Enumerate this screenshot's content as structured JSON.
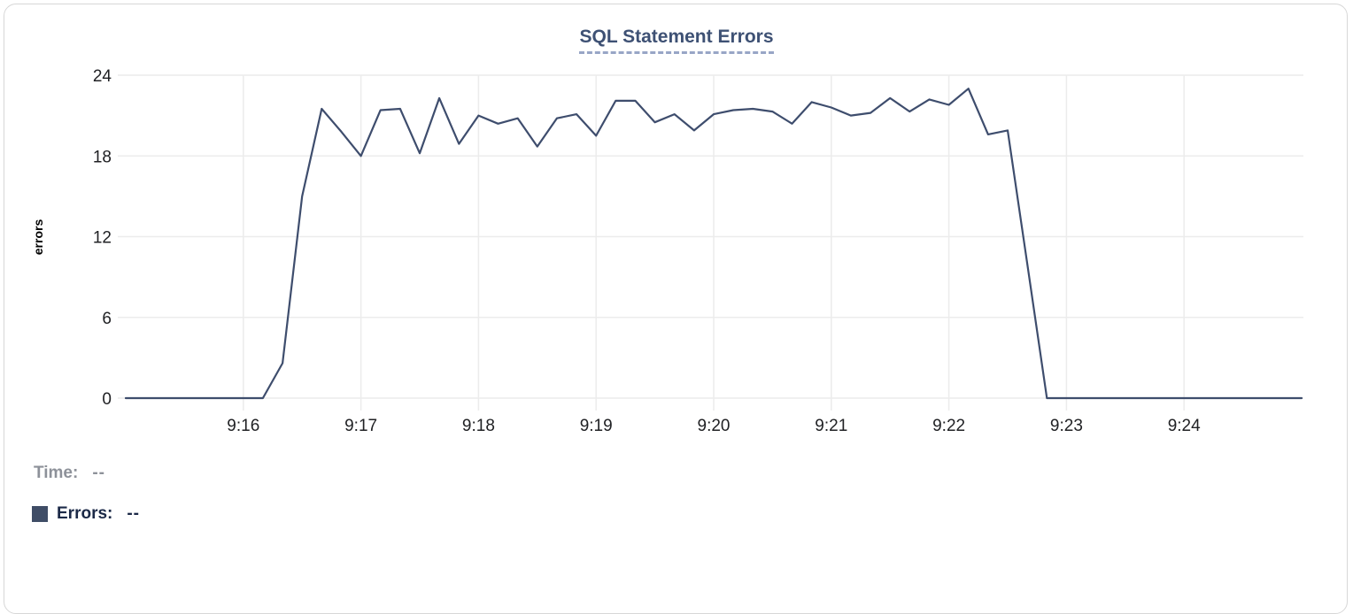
{
  "chart": {
    "title": "SQL Statement Errors",
    "y_axis": {
      "label": "errors",
      "ticks": [
        0,
        6,
        12,
        18,
        24
      ]
    },
    "x_axis": {
      "tick_labels": [
        "9:16",
        "9:17",
        "9:18",
        "9:19",
        "9:20",
        "9:21",
        "9:22",
        "9:23",
        "9:24"
      ]
    }
  },
  "legend": {
    "time_label": "Time:",
    "time_value": "--",
    "errors_label": "Errors:",
    "errors_value": "--"
  },
  "colors": {
    "line": "#3e4d6d",
    "title": "#3e5174",
    "title_underline": "#98a6c6",
    "legend_swatch": "#3f4d66",
    "legend_errors_text": "#1b2947",
    "legend_time_text": "#8d9199",
    "gridline": "#ececec",
    "tick_text": "#202124",
    "axis_label_text": "#000000"
  },
  "chart_data": {
    "type": "line",
    "title": "SQL Statement Errors",
    "xlabel": "",
    "ylabel": "errors",
    "ylim": [
      0,
      24
    ],
    "y_ticks": [
      0,
      6,
      12,
      18,
      24
    ],
    "x_start": "9:15:00",
    "x_end": "9:25:00",
    "sample_interval_seconds": 10,
    "x_tick_labels": [
      "9:16",
      "9:17",
      "9:18",
      "9:19",
      "9:20",
      "9:21",
      "9:22",
      "9:23",
      "9:24"
    ],
    "grid": true,
    "legend_position": "bottom-left",
    "series": [
      {
        "name": "Errors",
        "values": [
          0,
          0,
          0,
          0,
          0,
          0,
          0,
          0,
          2.6,
          15,
          21.5,
          19.8,
          18,
          21.4,
          21.5,
          18.2,
          22.3,
          18.9,
          21,
          20.4,
          20.8,
          18.7,
          20.8,
          21.1,
          19.5,
          22.1,
          22.1,
          20.5,
          21.1,
          19.9,
          21.1,
          21.4,
          21.5,
          21.3,
          20.4,
          22,
          21.6,
          21,
          21.2,
          22.3,
          21.3,
          22.2,
          21.8,
          23,
          19.6,
          19.9,
          10,
          0,
          0,
          0,
          0,
          0,
          0,
          0,
          0,
          0,
          0,
          0,
          0,
          0,
          0
        ]
      }
    ]
  }
}
